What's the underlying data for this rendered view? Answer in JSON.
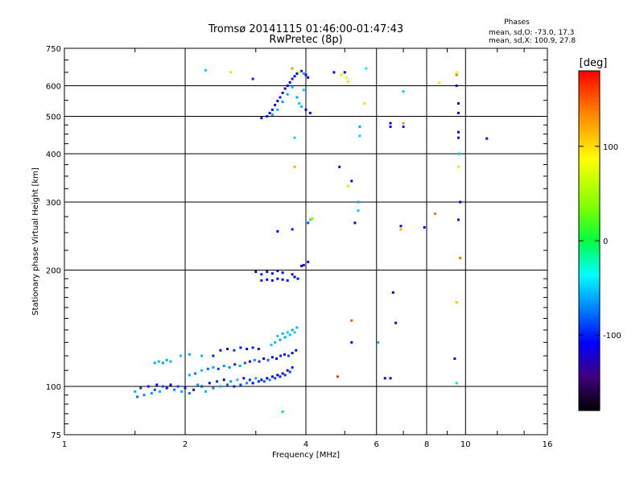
{
  "chart_data": {
    "type": "scatter",
    "title": "Tromsø 20141115 01:46:00-01:47:43",
    "subtitle": "RwPretec (8p)",
    "xlabel": "Frequency [MHz]",
    "ylabel": "Stationary phase Virtual Height [km]",
    "x_scale": "log2",
    "y_scale": "log",
    "xlim": [
      1,
      16
    ],
    "ylim": [
      75,
      750
    ],
    "x_ticks": [
      1,
      2,
      4,
      6,
      8,
      10,
      16
    ],
    "y_ticks": [
      75,
      100,
      200,
      300,
      400,
      500,
      600,
      750
    ],
    "grid": true,
    "phase_info": {
      "title": "Phases",
      "line1": "mean, sd,O: -73.0, 17.3",
      "line2": "mean, sd,X: 100.9, 27.8"
    },
    "colorbar": {
      "label": "[deg]",
      "range": [
        -180,
        180
      ],
      "ticks": [
        100,
        0,
        -100
      ]
    },
    "series": [
      {
        "points": [
          [
            1.5,
            97,
            -60
          ],
          [
            1.52,
            94,
            -75
          ],
          [
            1.55,
            99,
            -95
          ],
          [
            1.58,
            95,
            -70
          ],
          [
            1.62,
            100,
            -100
          ],
          [
            1.65,
            96,
            -65
          ],
          [
            1.68,
            98,
            -90
          ],
          [
            1.7,
            101,
            -110
          ],
          [
            1.73,
            97,
            -60
          ],
          [
            1.76,
            100,
            -85
          ],
          [
            1.8,
            99,
            -105
          ],
          [
            1.84,
            101,
            -120
          ],
          [
            1.88,
            98,
            -70
          ],
          [
            1.92,
            100,
            -90
          ],
          [
            1.96,
            97,
            -60
          ],
          [
            2.0,
            99,
            -100
          ],
          [
            2.05,
            96,
            -75
          ],
          [
            2.1,
            98,
            -120
          ],
          [
            2.15,
            101,
            -65
          ],
          [
            2.2,
            100,
            -90
          ],
          [
            2.25,
            97,
            -55
          ],
          [
            2.3,
            102,
            -110
          ],
          [
            2.35,
            99,
            -70
          ],
          [
            2.4,
            103,
            -95
          ],
          [
            2.45,
            100,
            -60
          ],
          [
            2.5,
            104,
            -120
          ],
          [
            2.55,
            101,
            -80
          ],
          [
            2.6,
            103,
            -65
          ],
          [
            2.65,
            100,
            -100
          ],
          [
            2.7,
            104,
            -55
          ],
          [
            2.75,
            101,
            -90
          ],
          [
            2.8,
            105,
            -120
          ],
          [
            2.85,
            102,
            -70
          ],
          [
            2.9,
            104,
            -95
          ],
          [
            2.95,
            102,
            -110
          ],
          [
            3.0,
            105,
            -60
          ],
          [
            3.05,
            103,
            -100
          ],
          [
            3.1,
            104,
            -125
          ],
          [
            3.15,
            103,
            -85
          ],
          [
            3.2,
            105,
            -110
          ],
          [
            3.25,
            104,
            -70
          ],
          [
            3.3,
            106,
            -120
          ],
          [
            3.35,
            105,
            -90
          ],
          [
            3.4,
            107,
            -115
          ],
          [
            3.45,
            106,
            -100
          ],
          [
            3.5,
            108,
            -125
          ],
          [
            3.55,
            107,
            -95
          ],
          [
            3.6,
            110,
            -120
          ],
          [
            3.65,
            109,
            -90
          ],
          [
            3.7,
            112,
            -100
          ],
          [
            2.05,
            107,
            -60
          ],
          [
            2.12,
            108,
            -75
          ],
          [
            2.2,
            110,
            -55
          ],
          [
            2.28,
            111,
            -80
          ],
          [
            2.35,
            112,
            -60
          ],
          [
            2.42,
            111,
            -90
          ],
          [
            2.5,
            113,
            -65
          ],
          [
            2.58,
            112,
            -70
          ],
          [
            2.66,
            114,
            -100
          ],
          [
            2.74,
            113,
            -60
          ],
          [
            2.82,
            115,
            -85
          ],
          [
            2.9,
            116,
            -110
          ],
          [
            2.98,
            117,
            -70
          ],
          [
            3.06,
            116,
            -95
          ],
          [
            3.14,
            118,
            -120
          ],
          [
            3.22,
            117,
            -80
          ],
          [
            3.3,
            119,
            -110
          ],
          [
            3.38,
            118,
            -125
          ],
          [
            3.46,
            120,
            -100
          ],
          [
            3.54,
            121,
            -115
          ],
          [
            3.62,
            120,
            -90
          ],
          [
            3.7,
            122,
            -120
          ],
          [
            3.78,
            124,
            -105
          ],
          [
            1.68,
            115,
            -60
          ],
          [
            1.72,
            116,
            -55
          ],
          [
            1.76,
            115,
            -65
          ],
          [
            1.8,
            117,
            -60
          ],
          [
            1.84,
            116,
            -55
          ],
          [
            1.95,
            120,
            -50
          ],
          [
            2.05,
            121,
            -60
          ],
          [
            2.2,
            120,
            -55
          ],
          [
            2.35,
            120,
            -100
          ],
          [
            2.45,
            124,
            -110
          ],
          [
            2.55,
            125,
            -120
          ],
          [
            2.65,
            124,
            -95
          ],
          [
            2.75,
            126,
            -105
          ],
          [
            2.85,
            125,
            -115
          ],
          [
            2.95,
            126,
            -100
          ],
          [
            3.05,
            125,
            -110
          ],
          [
            3.35,
            130,
            -55
          ],
          [
            3.4,
            135,
            -50
          ],
          [
            3.45,
            132,
            -60
          ],
          [
            3.5,
            137,
            -55
          ],
          [
            3.55,
            134,
            -60
          ],
          [
            3.6,
            138,
            -50
          ],
          [
            3.65,
            136,
            -55
          ],
          [
            3.7,
            140,
            -60
          ],
          [
            3.75,
            138,
            -50
          ],
          [
            3.8,
            142,
            -55
          ],
          [
            3.28,
            128,
            -50
          ],
          [
            3.0,
            198,
            -110
          ],
          [
            3.1,
            195,
            -100
          ],
          [
            3.2,
            198,
            -120
          ],
          [
            3.3,
            196,
            -105
          ],
          [
            3.4,
            199,
            -115
          ],
          [
            3.5,
            197,
            -110
          ],
          [
            3.1,
            188,
            -100
          ],
          [
            3.2,
            189,
            -110
          ],
          [
            3.3,
            188,
            -120
          ],
          [
            3.4,
            190,
            -105
          ],
          [
            3.5,
            189,
            -115
          ],
          [
            3.6,
            188,
            -110
          ],
          [
            3.7,
            195,
            -120
          ],
          [
            3.75,
            192,
            -110
          ],
          [
            3.82,
            190,
            -100
          ],
          [
            3.9,
            205,
            -110
          ],
          [
            3.95,
            206,
            -125
          ],
          [
            4.05,
            210,
            -105
          ],
          [
            3.4,
            252,
            -110
          ],
          [
            3.7,
            255,
            -100
          ],
          [
            4.05,
            265,
            -85
          ],
          [
            4.1,
            270,
            -5
          ],
          [
            4.15,
            272,
            40
          ],
          [
            3.1,
            495,
            -110
          ],
          [
            3.2,
            500,
            -100
          ],
          [
            3.25,
            510,
            -120
          ],
          [
            3.3,
            520,
            -105
          ],
          [
            3.35,
            535,
            -110
          ],
          [
            3.4,
            548,
            -115
          ],
          [
            3.45,
            560,
            -100
          ],
          [
            3.5,
            575,
            -110
          ],
          [
            3.55,
            590,
            -120
          ],
          [
            3.6,
            600,
            -105
          ],
          [
            3.65,
            612,
            -110
          ],
          [
            3.7,
            625,
            -100
          ],
          [
            3.75,
            635,
            -115
          ],
          [
            3.8,
            645,
            -110
          ],
          [
            3.9,
            655,
            -100
          ],
          [
            3.95,
            645,
            -60
          ],
          [
            4.0,
            640,
            -110
          ],
          [
            4.05,
            630,
            -120
          ],
          [
            3.3,
            505,
            -60
          ],
          [
            3.4,
            520,
            -55
          ],
          [
            3.5,
            545,
            -65
          ],
          [
            3.6,
            570,
            -60
          ],
          [
            3.7,
            595,
            -55
          ],
          [
            3.8,
            560,
            -60
          ],
          [
            3.85,
            540,
            -50
          ],
          [
            3.9,
            530,
            -55
          ],
          [
            3.7,
            665,
            130
          ],
          [
            3.85,
            650,
            80
          ],
          [
            3.95,
            585,
            -50
          ],
          [
            4.0,
            520,
            -110
          ],
          [
            4.1,
            510,
            -120
          ],
          [
            2.25,
            658,
            -50
          ],
          [
            2.6,
            650,
            100
          ],
          [
            2.95,
            625,
            -100
          ],
          [
            3.75,
            440,
            -50
          ],
          [
            3.75,
            370,
            120
          ],
          [
            4.85,
            370,
            -120
          ],
          [
            5.1,
            330,
            60
          ],
          [
            5.2,
            340,
            -130
          ],
          [
            5.45,
            445,
            -50
          ],
          [
            5.45,
            470,
            -60
          ],
          [
            5.4,
            300,
            -60
          ],
          [
            5.4,
            285,
            -50
          ],
          [
            5.3,
            265,
            -110
          ],
          [
            5.0,
            650,
            -110
          ],
          [
            5.05,
            630,
            80
          ],
          [
            5.1,
            615,
            100
          ],
          [
            4.9,
            640,
            60
          ],
          [
            4.7,
            650,
            -110
          ],
          [
            5.6,
            540,
            100
          ],
          [
            5.65,
            665,
            -40
          ],
          [
            6.5,
            480,
            -120
          ],
          [
            7.0,
            480,
            130
          ],
          [
            7.0,
            470,
            -110
          ],
          [
            6.5,
            470,
            -110
          ],
          [
            7.0,
            580,
            -50
          ],
          [
            6.9,
            255,
            120
          ],
          [
            6.9,
            260,
            -110
          ],
          [
            7.9,
            258,
            -110
          ],
          [
            8.4,
            280,
            140
          ],
          [
            8.6,
            610,
            100
          ],
          [
            9.5,
            640,
            140
          ],
          [
            9.5,
            650,
            80
          ],
          [
            9.5,
            600,
            -120
          ],
          [
            9.6,
            540,
            -120
          ],
          [
            9.6,
            510,
            -120
          ],
          [
            9.6,
            455,
            -120
          ],
          [
            9.6,
            440,
            -120
          ],
          [
            9.6,
            370,
            100
          ],
          [
            9.65,
            400,
            -50
          ],
          [
            9.7,
            300,
            -110
          ],
          [
            9.6,
            270,
            -110
          ],
          [
            9.7,
            215,
            140
          ],
          [
            9.5,
            165,
            110
          ],
          [
            9.4,
            118,
            -110
          ],
          [
            9.5,
            102,
            -45
          ],
          [
            11.3,
            438,
            -110
          ],
          [
            5.2,
            148,
            150
          ],
          [
            5.2,
            130,
            -110
          ],
          [
            4.8,
            106,
            160
          ],
          [
            6.3,
            105,
            -110
          ],
          [
            6.5,
            105,
            -120
          ],
          [
            6.6,
            175,
            -110
          ],
          [
            6.7,
            146,
            -110
          ],
          [
            3.5,
            86,
            -50
          ],
          [
            6.05,
            130,
            -60
          ]
        ]
      }
    ]
  }
}
